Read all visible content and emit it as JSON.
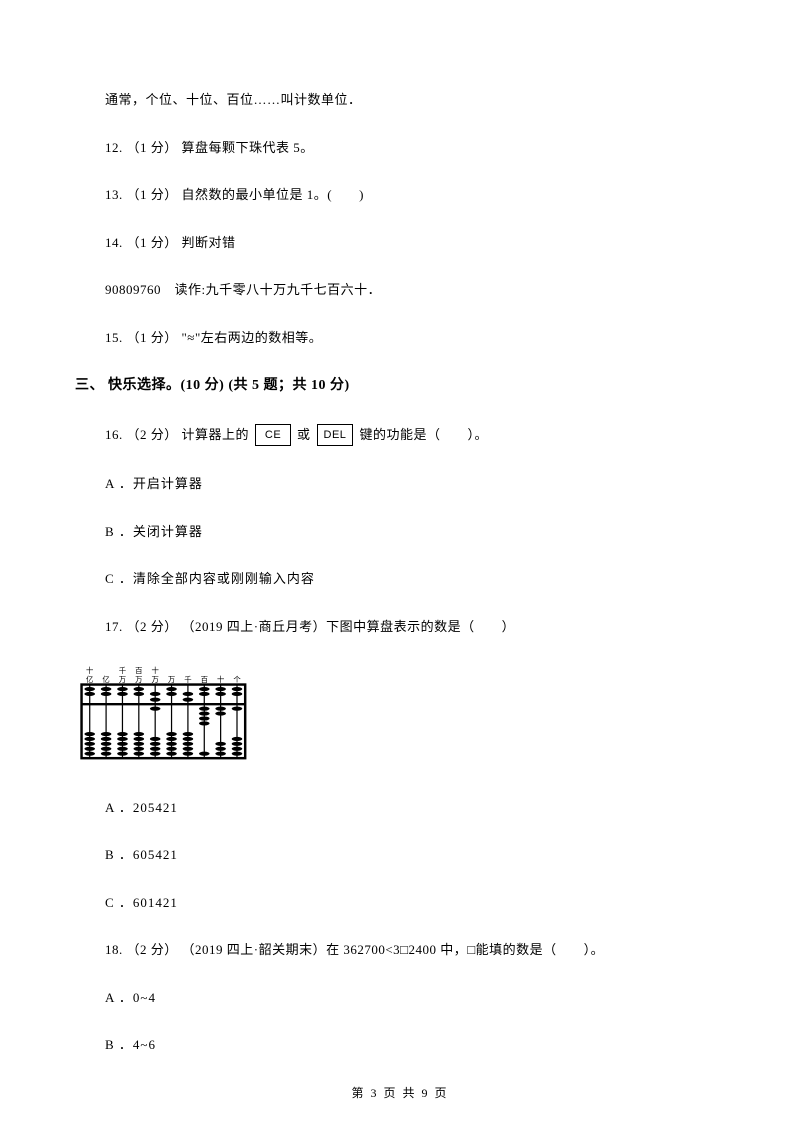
{
  "intro_line": "通常，个位、十位、百位……叫计数单位．",
  "q12": "12. （1 分） 算盘每颗下珠代表 5。",
  "q13": "13. （1 分） 自然数的最小单位是 1。(　　)",
  "q14": "14. （1 分） 判断对错",
  "q14_sub": "90809760　读作:九千零八十万九千七百六十．",
  "q15": "15. （1 分） \"≈\"左右两边的数相等。",
  "section3_heading": "三、 快乐选择。(10 分)  (共 5 题；共 10 分)",
  "q16_prefix": "16. （2 分） 计算器上的",
  "q16_key1": "CE",
  "q16_mid": "或",
  "q16_key2": "DEL",
  "q16_suffix": "键的功能是（　　）。",
  "q16_optA": "A ．开启计算器",
  "q16_optB": "B ．关闭计算器",
  "q16_optC": "C ．清除全部内容或刚刚输入内容",
  "q17": "17. （2 分） （2019 四上·商丘月考）下图中算盘表示的数是（　　）",
  "q17_optA": "A ．205421",
  "q17_optB": "B ．605421",
  "q17_optC": "C ．601421",
  "q18": "18. （2 分） （2019 四上·韶关期末）在 362700<3□2400 中，□能填的数是（　　）。",
  "q18_optA": "A ．0~4",
  "q18_optB": "B ．4~6",
  "footer": "第 3 页 共 9 页",
  "abacus": {
    "labels_top": [
      "十",
      "",
      "千",
      "百",
      "十",
      "",
      "",
      "",
      "",
      ""
    ],
    "labels_bot": [
      "亿",
      "亿",
      "万",
      "万",
      "万",
      "万",
      "千",
      "百",
      "十",
      "个"
    ],
    "frame_color": "#000000",
    "bead_color": "#000000",
    "rods": [
      {
        "up": 0,
        "down": 0
      },
      {
        "up": 0,
        "down": 0
      },
      {
        "up": 0,
        "down": 0
      },
      {
        "up": 0,
        "down": 0
      },
      {
        "up": 1,
        "down": 1
      },
      {
        "up": 0,
        "down": 0
      },
      {
        "up": 1,
        "down": 0
      },
      {
        "up": 0,
        "down": 4
      },
      {
        "up": 0,
        "down": 2
      },
      {
        "up": 0,
        "down": 1
      }
    ]
  }
}
